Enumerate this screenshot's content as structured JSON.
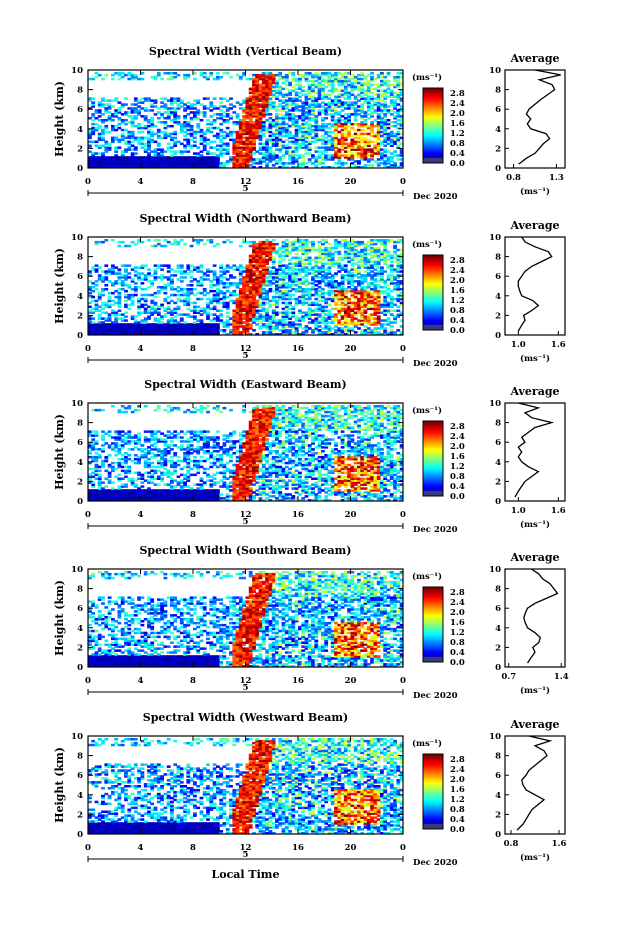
{
  "figure": {
    "date_label": "Dec 2020",
    "day_label": "5",
    "x_axis_label": "Local Time",
    "y_axis_label": "Height (km)",
    "unit_label": "(ms⁻¹)",
    "average_title": "Average",
    "average_xlabel": "(ms⁻¹)"
  },
  "chart_data": [
    {
      "type": "heatmap",
      "title": "Spectral Width (Vertical Beam)",
      "xticks": [
        "0",
        "4",
        "8",
        "12",
        "16",
        "20",
        "0"
      ],
      "xlim": [
        0,
        24
      ],
      "yticks": [
        "0",
        "2",
        "4",
        "6",
        "8",
        "10"
      ],
      "ylim": [
        0,
        10
      ],
      "colorbar_ticks": [
        "0.0",
        "0.4",
        "0.8",
        "1.2",
        "1.6",
        "2.0",
        "2.4",
        "2.8"
      ],
      "colorbar_range": [
        0,
        3.0
      ],
      "average_profile": {
        "type": "line",
        "title": "Average",
        "xticks": [
          "0.8",
          "1.3"
        ],
        "xlim": [
          0.7,
          1.4
        ],
        "ylim": [
          0,
          10
        ],
        "yticks": [
          "0",
          "2",
          "4",
          "6",
          "8",
          "10"
        ],
        "height": [
          0.4,
          1.0,
          1.5,
          2.0,
          2.5,
          3.0,
          3.5,
          4.0,
          4.5,
          5.0,
          5.5,
          6.0,
          6.5,
          7.0,
          7.5,
          8.0,
          8.5,
          9.0,
          9.5,
          10.0
        ],
        "value": [
          0.86,
          0.95,
          1.05,
          1.1,
          1.15,
          1.22,
          1.18,
          1.0,
          0.96,
          1.0,
          0.95,
          0.98,
          1.05,
          1.12,
          1.2,
          1.28,
          1.25,
          1.1,
          1.35,
          1.05
        ]
      }
    },
    {
      "type": "heatmap",
      "title": "Spectral Width (Northward Beam)",
      "xticks": [
        "0",
        "4",
        "8",
        "12",
        "16",
        "20",
        "0"
      ],
      "xlim": [
        0,
        24
      ],
      "yticks": [
        "0",
        "2",
        "4",
        "6",
        "8",
        "10"
      ],
      "ylim": [
        0,
        10
      ],
      "colorbar_ticks": [
        "0.0",
        "0.4",
        "0.8",
        "1.2",
        "1.6",
        "2.0",
        "2.4",
        "2.8"
      ],
      "colorbar_range": [
        0,
        3.0
      ],
      "average_profile": {
        "type": "line",
        "title": "Average",
        "xticks": [
          "1.0",
          "1.6"
        ],
        "xlim": [
          0.8,
          1.7
        ],
        "ylim": [
          0,
          10
        ],
        "yticks": [
          "0",
          "2",
          "4",
          "6",
          "8",
          "10"
        ],
        "height": [
          0.4,
          1.0,
          1.5,
          2.0,
          2.5,
          3.0,
          3.5,
          4.0,
          4.5,
          5.0,
          5.5,
          6.0,
          6.5,
          7.0,
          7.5,
          8.0,
          8.5,
          9.0,
          9.5,
          10.0
        ],
        "value": [
          1.0,
          1.05,
          1.1,
          1.08,
          1.2,
          1.3,
          1.22,
          1.05,
          1.02,
          1.0,
          1.0,
          1.05,
          1.1,
          1.2,
          1.35,
          1.5,
          1.45,
          1.25,
          1.1,
          1.05
        ]
      }
    },
    {
      "type": "heatmap",
      "title": "Spectral Width (Eastward Beam)",
      "xticks": [
        "0",
        "4",
        "8",
        "12",
        "16",
        "20",
        "0"
      ],
      "xlim": [
        0,
        24
      ],
      "yticks": [
        "0",
        "2",
        "4",
        "6",
        "8",
        "10"
      ],
      "ylim": [
        0,
        10
      ],
      "colorbar_ticks": [
        "0.0",
        "0.4",
        "0.8",
        "1.2",
        "1.6",
        "2.0",
        "2.4",
        "2.8"
      ],
      "colorbar_range": [
        0,
        3.0
      ],
      "average_profile": {
        "type": "line",
        "title": "Average",
        "xticks": [
          "1.0",
          "1.6"
        ],
        "xlim": [
          0.8,
          1.7
        ],
        "ylim": [
          0,
          10
        ],
        "yticks": [
          "0",
          "2",
          "4",
          "6",
          "8",
          "10"
        ],
        "height": [
          0.4,
          1.0,
          1.5,
          2.0,
          2.5,
          3.0,
          3.5,
          4.0,
          4.5,
          5.0,
          5.5,
          6.0,
          6.5,
          7.0,
          7.5,
          8.0,
          8.5,
          9.0,
          9.5,
          10.0
        ],
        "value": [
          0.95,
          1.0,
          1.05,
          1.1,
          1.2,
          1.3,
          1.15,
          1.05,
          1.0,
          1.05,
          1.0,
          1.1,
          1.05,
          1.15,
          1.25,
          1.5,
          1.2,
          1.1,
          1.3,
          1.0
        ]
      }
    },
    {
      "type": "heatmap",
      "title": "Spectral Width (Southward Beam)",
      "xticks": [
        "0",
        "4",
        "8",
        "12",
        "16",
        "20",
        "0"
      ],
      "xlim": [
        0,
        24
      ],
      "yticks": [
        "0",
        "2",
        "4",
        "6",
        "8",
        "10"
      ],
      "ylim": [
        0,
        10
      ],
      "colorbar_ticks": [
        "0.0",
        "0.4",
        "0.8",
        "1.2",
        "1.6",
        "2.0",
        "2.4",
        "2.8"
      ],
      "colorbar_range": [
        0,
        3.0
      ],
      "average_profile": {
        "type": "line",
        "title": "Average",
        "xticks": [
          "0.7",
          "1.4"
        ],
        "xlim": [
          0.65,
          1.45
        ],
        "ylim": [
          0,
          10
        ],
        "yticks": [
          "0",
          "2",
          "4",
          "6",
          "8",
          "10"
        ],
        "height": [
          0.4,
          1.0,
          1.5,
          2.0,
          2.5,
          3.0,
          3.5,
          4.0,
          4.5,
          5.0,
          5.5,
          6.0,
          6.5,
          7.0,
          7.5,
          8.0,
          8.5,
          9.0,
          9.5,
          10.0
        ],
        "value": [
          0.95,
          1.0,
          1.05,
          1.02,
          1.1,
          1.12,
          1.05,
          0.95,
          0.92,
          0.9,
          0.92,
          0.95,
          1.05,
          1.2,
          1.35,
          1.3,
          1.25,
          1.15,
          1.1,
          1.0
        ]
      }
    },
    {
      "type": "heatmap",
      "title": "Spectral Width (Westward Beam)",
      "xticks": [
        "0",
        "4",
        "8",
        "12",
        "16",
        "20",
        "0"
      ],
      "xlim": [
        0,
        24
      ],
      "yticks": [
        "0",
        "2",
        "4",
        "6",
        "8",
        "10"
      ],
      "ylim": [
        0,
        10
      ],
      "colorbar_ticks": [
        "0.0",
        "0.4",
        "0.8",
        "1.2",
        "1.6",
        "2.0",
        "2.4",
        "2.8"
      ],
      "colorbar_range": [
        0,
        3.0
      ],
      "average_profile": {
        "type": "line",
        "title": "Average",
        "xticks": [
          "0.8",
          "1.6"
        ],
        "xlim": [
          0.7,
          1.7
        ],
        "ylim": [
          0,
          10
        ],
        "yticks": [
          "0",
          "2",
          "4",
          "6",
          "8",
          "10"
        ],
        "height": [
          0.4,
          1.0,
          1.5,
          2.0,
          2.5,
          3.0,
          3.5,
          4.0,
          4.5,
          5.0,
          5.5,
          6.0,
          6.5,
          7.0,
          7.5,
          8.0,
          8.5,
          9.0,
          9.5,
          10.0
        ],
        "value": [
          0.9,
          1.0,
          1.05,
          1.1,
          1.15,
          1.25,
          1.35,
          1.2,
          1.05,
          1.0,
          0.98,
          1.05,
          1.1,
          1.2,
          1.3,
          1.4,
          1.35,
          1.2,
          1.45,
          1.1
        ]
      }
    }
  ]
}
